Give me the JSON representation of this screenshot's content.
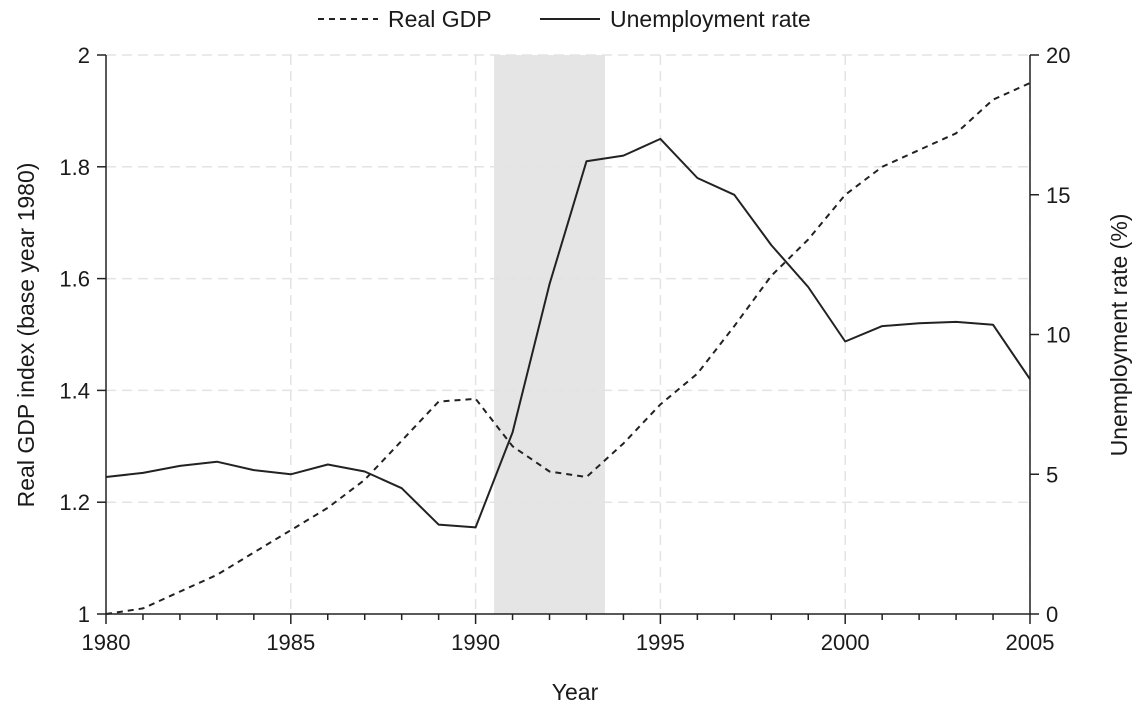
{
  "chart_data": {
    "type": "line",
    "title": "",
    "xlabel": "Year",
    "ylabel_left": "Real GDP index (base year 1980)",
    "ylabel_right": "Unemployment rate (%)",
    "xlim": [
      1980,
      2005
    ],
    "ylim_left": [
      1,
      2
    ],
    "ylim_right": [
      0,
      20
    ],
    "x_ticks": [
      1980,
      1985,
      1990,
      1995,
      2000,
      2005
    ],
    "y_left_ticks": [
      "1",
      "1.2",
      "1.4",
      "1.6",
      "1.8",
      "2"
    ],
    "y_right_ticks": [
      "0",
      "5",
      "10",
      "15",
      "20"
    ],
    "grid": true,
    "legend_position": "top-center",
    "shaded_region": {
      "x_start": 1990.5,
      "x_end": 1993.5,
      "color": "#e5e5e5"
    },
    "x": [
      1980,
      1981,
      1982,
      1983,
      1984,
      1985,
      1986,
      1987,
      1988,
      1989,
      1990,
      1991,
      1992,
      1993,
      1994,
      1995,
      1996,
      1997,
      1998,
      1999,
      2000,
      2001,
      2002,
      2003,
      2004,
      2005
    ],
    "series": [
      {
        "name": "Real GDP",
        "axis": "left",
        "style": "dashed",
        "color": "#222222",
        "values": [
          1.0,
          1.01,
          1.04,
          1.07,
          1.11,
          1.15,
          1.19,
          1.24,
          1.31,
          1.38,
          1.385,
          1.3,
          1.255,
          1.245,
          1.305,
          1.375,
          1.43,
          1.515,
          1.605,
          1.67,
          1.75,
          1.8,
          1.83,
          1.86,
          1.92,
          1.95
        ]
      },
      {
        "name": "Unemployment rate",
        "axis": "right",
        "style": "solid",
        "color": "#222222",
        "values": [
          4.9,
          5.05,
          5.3,
          5.45,
          5.15,
          5.0,
          5.35,
          5.1,
          4.5,
          3.2,
          3.1,
          6.5,
          11.8,
          16.2,
          16.4,
          17.0,
          15.6,
          15.0,
          13.2,
          11.7,
          9.75,
          10.3,
          10.4,
          10.45,
          10.35,
          8.4
        ]
      }
    ]
  }
}
